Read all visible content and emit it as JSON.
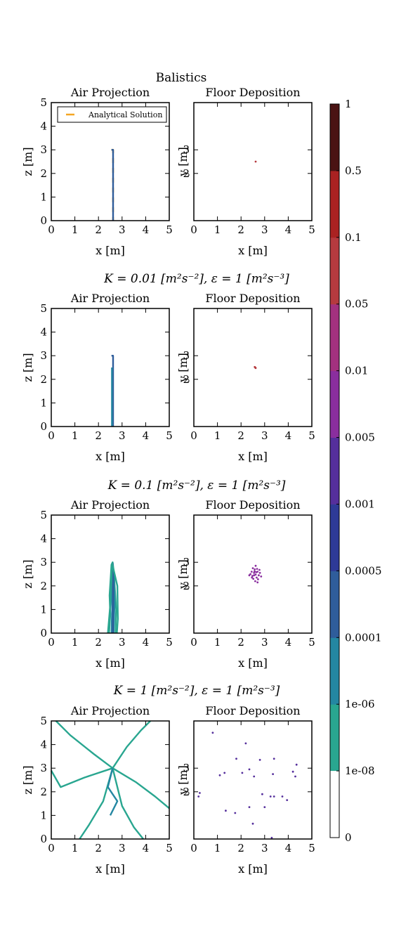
{
  "figure_title": "Balistics",
  "colorbar": {
    "levels": [
      "0",
      "1e-08",
      "1e-06",
      "0.0001",
      "0.0005",
      "0.001",
      "0.005",
      "0.01",
      "0.05",
      "0.1",
      "0.5",
      "1"
    ],
    "colors": [
      "#ffffff",
      "#2ca02c",
      "#29a690",
      "#2487a2",
      "#2f5d9b",
      "#2e3a97",
      "#552f9c",
      "#8a2e9e",
      "#a3317f",
      "#b53a3f",
      "#aa2222",
      "#4a1313"
    ]
  },
  "panels": [
    {
      "row_title": "",
      "air_title": "Air Projection",
      "floor_title": "Floor Deposition",
      "air_ylabel": "z [m]",
      "floor_ylabel": "y [m]",
      "xlabel": "x [m]",
      "legend_label": "Analytical Solution"
    },
    {
      "row_title": "K = 0.01 [m²s⁻²], ε = 1 [m²s⁻³]",
      "air_title": "Air Projection",
      "floor_title": "Floor Deposition",
      "air_ylabel": "z [m]",
      "floor_ylabel": "y [m]",
      "xlabel": "x [m]"
    },
    {
      "row_title": "K = 0.1 [m²s⁻²], ε = 1 [m²s⁻³]",
      "air_title": "Air Projection",
      "floor_title": "Floor Deposition",
      "air_ylabel": "z [m]",
      "floor_ylabel": "y [m]",
      "xlabel": "x [m]"
    },
    {
      "row_title": "K = 1 [m²s⁻²], ε = 1 [m²s⁻³]",
      "air_title": "Air Projection",
      "floor_title": "Floor Deposition",
      "air_ylabel": "z [m]",
      "floor_ylabel": "y [m]",
      "xlabel": "x [m]"
    }
  ],
  "chart_data": [
    {
      "type": "line",
      "panel": "air-1",
      "title": "Air Projection",
      "xlabel": "x [m]",
      "ylabel": "z [m]",
      "xlim": [
        0,
        5
      ],
      "ylim": [
        0,
        5
      ],
      "xticks": [
        "0",
        "1",
        "2",
        "3",
        "4",
        "5"
      ],
      "yticks": [
        "0",
        "1",
        "2",
        "3",
        "4",
        "5"
      ],
      "legend": "top-left",
      "series": [
        {
          "name": "Analytical Solution",
          "color": "#f5a623",
          "dashed": true,
          "points": [
            [
              2.55,
              3.0
            ],
            [
              2.62,
              3.0
            ],
            [
              2.62,
              0.0
            ]
          ]
        },
        {
          "color": "#2f5d9b",
          "points": [
            [
              2.55,
              3.0
            ],
            [
              2.62,
              3.0
            ],
            [
              2.62,
              0.0
            ]
          ]
        }
      ]
    },
    {
      "type": "scatter",
      "panel": "floor-1",
      "title": "Floor Deposition",
      "xlabel": "x [m]",
      "ylabel": "y [m]",
      "xlim": [
        0,
        5
      ],
      "ylim": [
        0,
        5
      ],
      "xticks": [
        "0",
        "1",
        "2",
        "3",
        "4",
        "5"
      ],
      "yticks": [
        "2",
        "3"
      ],
      "points": [
        [
          2.62,
          2.5
        ]
      ],
      "color": "#b53a3f"
    },
    {
      "type": "line",
      "panel": "air-2",
      "title": "Air Projection",
      "xlabel": "x [m]",
      "ylabel": "z [m]",
      "xlim": [
        0,
        5
      ],
      "ylim": [
        0,
        5
      ],
      "xticks": [
        "0",
        "1",
        "2",
        "3",
        "4",
        "5"
      ],
      "yticks": [
        "0",
        "1",
        "2",
        "3",
        "4",
        "5"
      ],
      "series": [
        {
          "color": "#2f5d9b",
          "points": [
            [
              2.55,
              3.0
            ],
            [
              2.62,
              3.0
            ],
            [
              2.62,
              0.0
            ]
          ]
        },
        {
          "color": "#2487a2",
          "points": [
            [
              2.57,
              2.5
            ],
            [
              2.57,
              0.0
            ]
          ]
        }
      ]
    },
    {
      "type": "scatter",
      "panel": "floor-2",
      "title": "Floor Deposition",
      "xlabel": "x [m]",
      "ylabel": "y [m]",
      "xlim": [
        0,
        5
      ],
      "ylim": [
        0,
        5
      ],
      "xticks": [
        "0",
        "1",
        "2",
        "3",
        "4",
        "5"
      ],
      "yticks": [
        "2",
        "3"
      ],
      "points": [
        [
          2.6,
          2.5
        ],
        [
          2.62,
          2.48
        ],
        [
          2.58,
          2.52
        ]
      ],
      "color": "#b53a3f"
    },
    {
      "type": "line",
      "panel": "air-3",
      "title": "Air Projection",
      "xlabel": "x [m]",
      "ylabel": "z [m]",
      "xlim": [
        0,
        5
      ],
      "ylim": [
        0,
        5
      ],
      "xticks": [
        "0",
        "1",
        "2",
        "3",
        "4",
        "5"
      ],
      "yticks": [
        "0",
        "1",
        "2",
        "3",
        "4",
        "5"
      ],
      "series": [
        {
          "color": "#29a690",
          "points": [
            [
              2.45,
              0
            ],
            [
              2.5,
              0.8
            ],
            [
              2.47,
              1.6
            ],
            [
              2.52,
              2.4
            ],
            [
              2.55,
              2.9
            ],
            [
              2.6,
              3.0
            ],
            [
              2.65,
              2.6
            ],
            [
              2.7,
              1.8
            ],
            [
              2.75,
              1.0
            ],
            [
              2.72,
              0.0
            ]
          ]
        },
        {
          "color": "#2487a2",
          "points": [
            [
              2.55,
              0
            ],
            [
              2.58,
              1.0
            ],
            [
              2.55,
              2.0
            ],
            [
              2.6,
              2.9
            ],
            [
              2.66,
              2.2
            ],
            [
              2.68,
              1.2
            ],
            [
              2.64,
              0.0
            ]
          ]
        },
        {
          "color": "#2f5d9b",
          "points": [
            [
              2.6,
              0
            ],
            [
              2.62,
              1.5
            ],
            [
              2.6,
              2.95
            ],
            [
              2.63,
              2.0
            ],
            [
              2.61,
              0.0
            ]
          ]
        },
        {
          "color": "#29a690",
          "points": [
            [
              2.4,
              0
            ],
            [
              2.5,
              1.2
            ],
            [
              2.55,
              2.2
            ],
            [
              2.58,
              2.95
            ],
            [
              2.8,
              2.0
            ],
            [
              2.82,
              0.6
            ],
            [
              2.78,
              0.0
            ]
          ]
        }
      ]
    },
    {
      "type": "scatter",
      "panel": "floor-3",
      "title": "Floor Deposition",
      "xlabel": "x [m]",
      "ylabel": "y [m]",
      "xlim": [
        0,
        5
      ],
      "ylim": [
        0,
        5
      ],
      "xticks": [
        "0",
        "1",
        "2",
        "3",
        "4",
        "5"
      ],
      "yticks": [
        "2",
        "3"
      ],
      "color": "#8a2e9e",
      "points": [
        [
          2.55,
          2.55
        ],
        [
          2.62,
          2.48
        ],
        [
          2.7,
          2.6
        ],
        [
          2.48,
          2.42
        ],
        [
          2.66,
          2.35
        ],
        [
          2.58,
          2.7
        ],
        [
          2.75,
          2.45
        ],
        [
          2.45,
          2.6
        ],
        [
          2.68,
          2.72
        ],
        [
          2.52,
          2.3
        ],
        [
          2.8,
          2.55
        ],
        [
          2.6,
          2.2
        ],
        [
          2.4,
          2.5
        ],
        [
          2.72,
          2.28
        ],
        [
          2.57,
          2.62
        ],
        [
          2.64,
          2.58
        ],
        [
          2.5,
          2.75
        ],
        [
          2.85,
          2.4
        ],
        [
          2.62,
          2.85
        ],
        [
          2.35,
          2.45
        ],
        [
          2.7,
          2.15
        ],
        [
          2.55,
          2.45
        ],
        [
          2.78,
          2.68
        ],
        [
          2.46,
          2.35
        ]
      ]
    },
    {
      "type": "line",
      "panel": "air-4",
      "title": "Air Projection",
      "xlabel": "x [m]",
      "ylabel": "z [m]",
      "xlim": [
        0,
        5
      ],
      "ylim": [
        0,
        5
      ],
      "xticks": [
        "0",
        "1",
        "2",
        "3",
        "4",
        "5"
      ],
      "yticks": [
        "0",
        "1",
        "2",
        "3",
        "4",
        "5"
      ],
      "series": [
        {
          "color": "#29a690",
          "points": [
            [
              2.6,
              3.0
            ],
            [
              1.8,
              3.6
            ],
            [
              0.8,
              4.4
            ],
            [
              0.2,
              5.0
            ]
          ]
        },
        {
          "color": "#29a690",
          "points": [
            [
              2.6,
              3.0
            ],
            [
              3.2,
              3.9
            ],
            [
              3.8,
              4.6
            ],
            [
              4.2,
              5.0
            ]
          ]
        },
        {
          "color": "#29a690",
          "points": [
            [
              2.6,
              3.0
            ],
            [
              1.4,
              2.6
            ],
            [
              0.4,
              2.2
            ],
            [
              0.0,
              2.9
            ]
          ]
        },
        {
          "color": "#29a690",
          "points": [
            [
              2.6,
              3.0
            ],
            [
              3.6,
              2.4
            ],
            [
              4.4,
              1.8
            ],
            [
              5.0,
              1.3
            ]
          ]
        },
        {
          "color": "#29a690",
          "points": [
            [
              2.6,
              3.0
            ],
            [
              2.2,
              1.6
            ],
            [
              1.6,
              0.6
            ],
            [
              1.2,
              0.0
            ]
          ]
        },
        {
          "color": "#29a690",
          "points": [
            [
              2.6,
              3.0
            ],
            [
              3.0,
              1.4
            ],
            [
              3.5,
              0.5
            ],
            [
              3.9,
              0.0
            ]
          ]
        },
        {
          "color": "#2487a2",
          "points": [
            [
              2.6,
              3.0
            ],
            [
              2.4,
              2.2
            ],
            [
              2.8,
              1.6
            ],
            [
              2.5,
              1.0
            ]
          ]
        }
      ]
    },
    {
      "type": "scatter",
      "panel": "floor-4",
      "title": "Floor Deposition",
      "xlabel": "x [m]",
      "ylabel": "y [m]",
      "xlim": [
        0,
        5
      ],
      "ylim": [
        0,
        5
      ],
      "xticks": [
        "0",
        "1",
        "2",
        "3",
        "4",
        "5"
      ],
      "yticks": [
        "2",
        "3"
      ],
      "color": "#552f9c",
      "points": [
        [
          0.8,
          4.5
        ],
        [
          2.2,
          4.05
        ],
        [
          1.8,
          3.4
        ],
        [
          2.8,
          3.35
        ],
        [
          3.4,
          3.4
        ],
        [
          4.35,
          3.15
        ],
        [
          2.35,
          2.95
        ],
        [
          1.1,
          2.7
        ],
        [
          1.3,
          2.8
        ],
        [
          2.05,
          2.8
        ],
        [
          2.55,
          2.65
        ],
        [
          3.35,
          2.75
        ],
        [
          4.2,
          2.85
        ],
        [
          4.3,
          2.65
        ],
        [
          0.25,
          1.95
        ],
        [
          0.2,
          1.8
        ],
        [
          3.25,
          1.8
        ],
        [
          3.4,
          1.8
        ],
        [
          3.75,
          1.8
        ],
        [
          3.95,
          1.65
        ],
        [
          2.9,
          1.9
        ],
        [
          1.35,
          1.2
        ],
        [
          1.75,
          1.1
        ],
        [
          2.35,
          1.35
        ],
        [
          3.0,
          1.35
        ],
        [
          2.5,
          0.65
        ],
        [
          3.3,
          0.05
        ]
      ]
    }
  ]
}
